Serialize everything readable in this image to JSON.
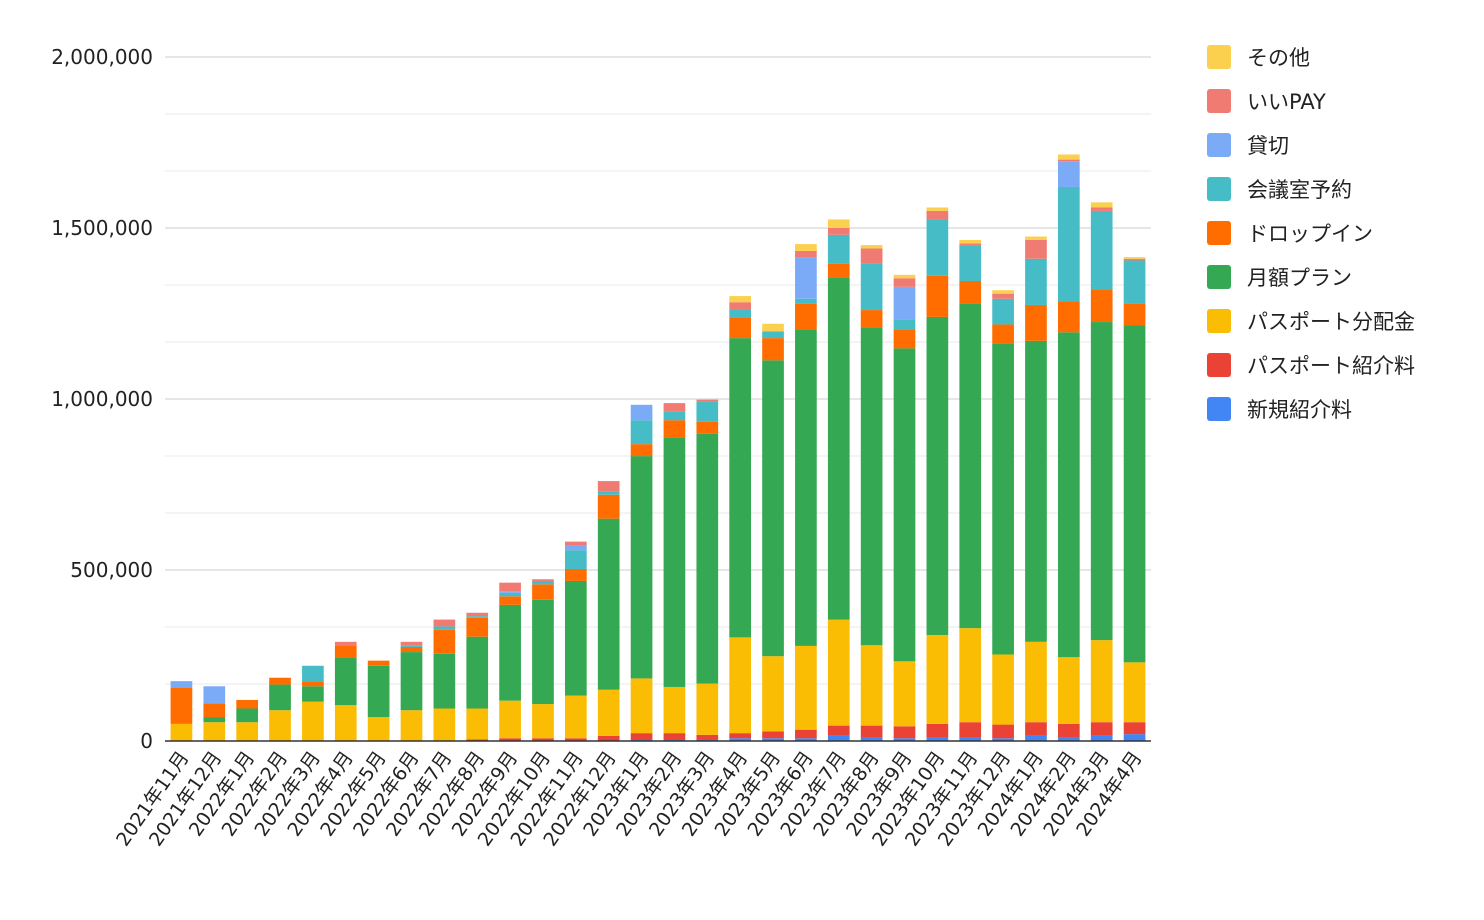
{
  "chart_data": {
    "type": "bar",
    "stacked": true,
    "title": "",
    "xlabel": "",
    "ylabel": "",
    "ylim": [
      0,
      2000000
    ],
    "yticks": [
      "0",
      "500,000",
      "1,000,000",
      "1,500,000",
      "2,000,000"
    ],
    "grid": true,
    "legend_position": "right",
    "categories": [
      "2021年11月",
      "2021年12月",
      "2022年1月",
      "2022年2月",
      "2022年3月",
      "2022年4月",
      "2022年5月",
      "2022年6月",
      "2022年7月",
      "2022年8月",
      "2022年9月",
      "2022年10月",
      "2022年11月",
      "2022年12月",
      "2023年1月",
      "2023年2月",
      "2023年3月",
      "2023年4月",
      "2023年5月",
      "2023年6月",
      "2023年7月",
      "2023年8月",
      "2023年9月",
      "2023年10月",
      "2023年11月",
      "2023年12月",
      "2024年1月",
      "2024年2月",
      "2024年3月",
      "2024年4月"
    ],
    "series": [
      {
        "name": "新規紹介料",
        "color": "#4285f4",
        "values": [
          0,
          0,
          0,
          0,
          0,
          0,
          0,
          0,
          0,
          0,
          0,
          0,
          0,
          0,
          3000,
          3000,
          3000,
          8000,
          8000,
          8000,
          15000,
          10000,
          8000,
          10000,
          10000,
          8000,
          15000,
          10000,
          15000,
          20000
        ]
      },
      {
        "name": "パスポート紹介料",
        "color": "#ea4335",
        "values": [
          0,
          0,
          0,
          0,
          0,
          0,
          0,
          0,
          0,
          5000,
          8000,
          8000,
          8000,
          15000,
          20000,
          20000,
          15000,
          15000,
          20000,
          25000,
          30000,
          35000,
          35000,
          40000,
          45000,
          40000,
          40000,
          40000,
          40000,
          35000
        ]
      },
      {
        "name": "パスポート分配金",
        "color": "#fbbc04",
        "values": [
          50000,
          55000,
          55000,
          90000,
          115000,
          105000,
          70000,
          90000,
          95000,
          90000,
          110000,
          100000,
          125000,
          135000,
          160000,
          135000,
          150000,
          280000,
          220000,
          245000,
          310000,
          235000,
          190000,
          260000,
          275000,
          205000,
          235000,
          195000,
          240000,
          175000
        ]
      },
      {
        "name": "月額プラン",
        "color": "#34a853",
        "values": [
          0,
          15000,
          40000,
          75000,
          45000,
          140000,
          150000,
          170000,
          160000,
          210000,
          280000,
          305000,
          335000,
          500000,
          650000,
          730000,
          730000,
          875000,
          865000,
          925000,
          1000000,
          930000,
          915000,
          930000,
          950000,
          910000,
          880000,
          950000,
          930000,
          985000
        ]
      },
      {
        "name": "ドロップイン",
        "color": "#ff6d01",
        "values": [
          105000,
          40000,
          25000,
          20000,
          15000,
          35000,
          15000,
          15000,
          70000,
          55000,
          25000,
          45000,
          35000,
          70000,
          35000,
          50000,
          35000,
          60000,
          65000,
          75000,
          40000,
          50000,
          55000,
          120000,
          65000,
          55000,
          105000,
          90000,
          95000,
          65000
        ]
      },
      {
        "name": "会議室予約",
        "color": "#46bdc6",
        "values": [
          0,
          0,
          0,
          0,
          45000,
          0,
          0,
          5000,
          10000,
          5000,
          10000,
          10000,
          55000,
          10000,
          70000,
          25000,
          60000,
          25000,
          20000,
          15000,
          85000,
          135000,
          30000,
          165000,
          105000,
          75000,
          135000,
          335000,
          230000,
          125000
        ]
      },
      {
        "name": "貸切",
        "color": "#7baaf7",
        "values": [
          20000,
          50000,
          0,
          0,
          0,
          0,
          0,
          0,
          0,
          0,
          5000,
          0,
          15000,
          0,
          45000,
          0,
          0,
          0,
          0,
          120000,
          0,
          0,
          95000,
          0,
          0,
          0,
          0,
          75000,
          0,
          0
        ]
      },
      {
        "name": "いいPAY",
        "color": "#f07b72",
        "values": [
          0,
          0,
          0,
          0,
          0,
          10000,
          0,
          10000,
          20000,
          10000,
          25000,
          5000,
          10000,
          30000,
          0,
          25000,
          5000,
          20000,
          0,
          20000,
          20000,
          45000,
          25000,
          25000,
          5000,
          15000,
          55000,
          5000,
          10000,
          5000
        ]
      },
      {
        "name": "その他",
        "color": "#fcd04f",
        "values": [
          0,
          0,
          0,
          0,
          0,
          0,
          0,
          0,
          0,
          0,
          0,
          0,
          0,
          0,
          0,
          0,
          0,
          18000,
          22000,
          20000,
          25000,
          10000,
          10000,
          10000,
          10000,
          10000,
          10000,
          15000,
          15000,
          5000
        ]
      }
    ],
    "legend_order": [
      "その他",
      "いいPAY",
      "貸切",
      "会議室予約",
      "ドロップイン",
      "月額プラン",
      "パスポート分配金",
      "パスポート紹介料",
      "新規紹介料"
    ]
  }
}
